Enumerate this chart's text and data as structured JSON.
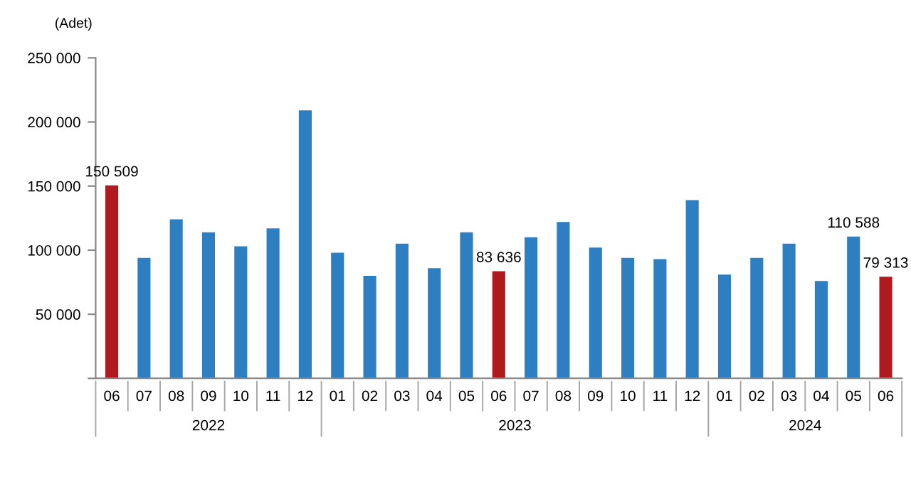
{
  "chart_data": {
    "type": "bar",
    "ylabel": "(Adet)",
    "categories": [
      "06",
      "07",
      "08",
      "09",
      "10",
      "11",
      "12",
      "01",
      "02",
      "03",
      "04",
      "05",
      "06",
      "07",
      "08",
      "09",
      "10",
      "11",
      "12",
      "01",
      "02",
      "03",
      "04",
      "05",
      "06"
    ],
    "values": [
      150509,
      94000,
      124000,
      114000,
      103000,
      117000,
      209000,
      98000,
      80000,
      105000,
      86000,
      114000,
      83636,
      110000,
      122000,
      102000,
      94000,
      93000,
      139000,
      81000,
      94000,
      105000,
      76000,
      110588,
      79313
    ],
    "value_labels": [
      "150 509",
      null,
      null,
      null,
      null,
      null,
      null,
      null,
      null,
      null,
      null,
      null,
      "83 636",
      null,
      null,
      null,
      null,
      null,
      null,
      null,
      null,
      null,
      null,
      "110 588",
      "79 313"
    ],
    "colors": [
      "#b0191e",
      "#2e7fc1",
      "#2e7fc1",
      "#2e7fc1",
      "#2e7fc1",
      "#2e7fc1",
      "#2e7fc1",
      "#2e7fc1",
      "#2e7fc1",
      "#2e7fc1",
      "#2e7fc1",
      "#2e7fc1",
      "#b0191e",
      "#2e7fc1",
      "#2e7fc1",
      "#2e7fc1",
      "#2e7fc1",
      "#2e7fc1",
      "#2e7fc1",
      "#2e7fc1",
      "#2e7fc1",
      "#2e7fc1",
      "#2e7fc1",
      "#2e7fc1",
      "#b0191e"
    ],
    "ylim": [
      0,
      250000
    ],
    "yticks": [
      {
        "value": 0,
        "label": null
      },
      {
        "value": 50000,
        "label": "50 000"
      },
      {
        "value": 100000,
        "label": "100 000"
      },
      {
        "value": 150000,
        "label": "150 000"
      },
      {
        "value": 200000,
        "label": "200 000"
      },
      {
        "value": 250000,
        "label": "250 000"
      }
    ],
    "annotations": [
      "2022",
      "2023",
      "2024"
    ],
    "grid": false,
    "legend": false
  }
}
